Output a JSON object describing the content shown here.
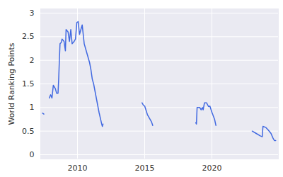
{
  "chart_data": {
    "type": "line",
    "y_label": "World Ranking Points",
    "x": [
      2007.4,
      2007.5,
      2007.7,
      2007.9,
      2008.0,
      2008.1,
      2008.2,
      2008.35,
      2008.45,
      2008.55,
      2008.6,
      2008.65,
      2008.7,
      2008.8,
      2008.85,
      2009.0,
      2009.1,
      2009.15,
      2009.3,
      2009.4,
      2009.5,
      2009.6,
      2009.75,
      2009.85,
      2009.95,
      2010.05,
      2010.15,
      2010.3,
      2010.35,
      2010.5,
      2010.6,
      2010.75,
      2010.9,
      2011.0,
      2011.1,
      2011.2,
      2011.4,
      2011.6,
      2011.8,
      2011.85,
      2011.9,
      2013.0,
      2014.8,
      2014.9,
      2015.0,
      2015.2,
      2015.5,
      2015.6,
      2017.0,
      2018.8,
      2018.85,
      2018.9,
      2019.1,
      2019.2,
      2019.3,
      2019.35,
      2019.45,
      2019.6,
      2019.75,
      2019.85,
      2020.0,
      2020.2,
      2020.3,
      2021.5,
      2023.0,
      2023.3,
      2023.6,
      2023.75,
      2023.8,
      2024.0,
      2024.2,
      2024.4,
      2024.55,
      2024.65,
      2024.75
    ],
    "series": [
      {
        "name": "World Ranking Points",
        "color": "#4169e1",
        "values": [
          0.88,
          0.86,
          null,
          1.2,
          1.27,
          1.2,
          1.47,
          1.4,
          1.3,
          1.3,
          1.6,
          2.0,
          2.35,
          2.38,
          2.45,
          2.4,
          2.2,
          2.65,
          2.6,
          2.4,
          2.65,
          2.35,
          2.4,
          2.45,
          2.8,
          2.82,
          2.55,
          2.7,
          2.75,
          2.35,
          2.25,
          2.1,
          1.95,
          1.8,
          1.6,
          1.5,
          1.2,
          0.9,
          0.65,
          0.6,
          0.65,
          null,
          1.1,
          1.05,
          1.03,
          0.85,
          0.7,
          0.62,
          null,
          0.68,
          0.65,
          1.0,
          1.0,
          0.95,
          1.0,
          0.95,
          1.1,
          1.1,
          1.02,
          1.03,
          0.9,
          0.75,
          0.62,
          null,
          0.5,
          0.45,
          0.4,
          0.38,
          0.6,
          0.58,
          0.52,
          0.45,
          0.35,
          0.3,
          0.3
        ]
      }
    ],
    "xlim": [
      2007.26,
      2024.95
    ],
    "xticks": [
      2010,
      2015,
      2020
    ],
    "ylim": [
      -0.09,
      3.09
    ],
    "yticks": [
      0,
      0.5,
      1,
      1.5,
      2,
      2.5,
      3
    ],
    "grid": true
  }
}
